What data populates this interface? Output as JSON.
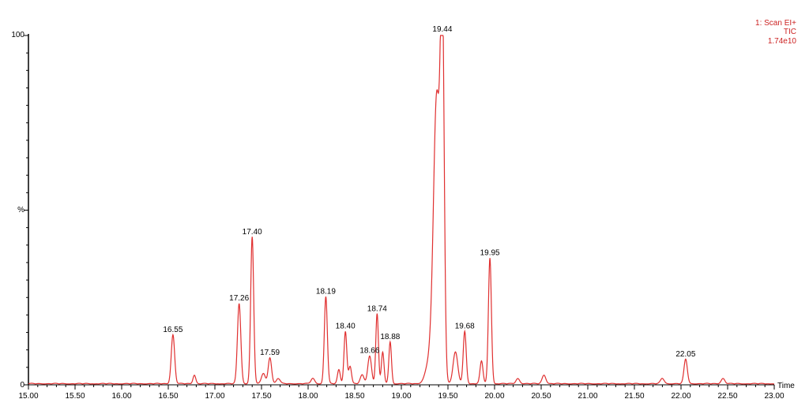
{
  "chart_data": {
    "type": "line",
    "colors": {
      "trace": "#e03030",
      "axis": "#000000",
      "legend": "#cc2222"
    },
    "legend": {
      "line1": "1: Scan EI+",
      "line2": "TIC",
      "line3": "1.74e10",
      "placement": "top-right"
    },
    "xlabel": "Time",
    "ylabel": "%",
    "xlim": [
      15.0,
      23.0
    ],
    "ylim": [
      0,
      100
    ],
    "grid": false,
    "x_tick_labels": [
      "15.00",
      "15.50",
      "16.00",
      "16.50",
      "17.00",
      "17.50",
      "18.00",
      "18.50",
      "19.00",
      "19.50",
      "20.00",
      "20.50",
      "21.00",
      "21.50",
      "22.00",
      "22.50",
      "23.00"
    ],
    "y_tick_labels": {
      "top": "100",
      "mid": "%",
      "bottom": "0"
    },
    "series": [
      {
        "peaks": [
          {
            "rt": 16.55,
            "height": 14,
            "width": 0.018,
            "label": "16.55"
          },
          {
            "rt": 16.78,
            "height": 2.5,
            "width": 0.015
          },
          {
            "rt": 17.26,
            "height": 23,
            "width": 0.018,
            "label": "17.26"
          },
          {
            "rt": 17.4,
            "height": 42,
            "width": 0.016,
            "label": "17.40"
          },
          {
            "rt": 17.52,
            "height": 3,
            "width": 0.02
          },
          {
            "rt": 17.59,
            "height": 7.5,
            "width": 0.018,
            "label": "17.59"
          },
          {
            "rt": 17.68,
            "height": 1.5,
            "width": 0.02
          },
          {
            "rt": 18.05,
            "height": 1.5,
            "width": 0.02
          },
          {
            "rt": 18.19,
            "height": 25,
            "width": 0.016,
            "label": "18.19"
          },
          {
            "rt": 18.33,
            "height": 4,
            "width": 0.015
          },
          {
            "rt": 18.4,
            "height": 15,
            "width": 0.015,
            "label": "18.40"
          },
          {
            "rt": 18.45,
            "height": 5,
            "width": 0.015
          },
          {
            "rt": 18.58,
            "height": 2.5,
            "width": 0.02
          },
          {
            "rt": 18.66,
            "height": 8,
            "width": 0.02,
            "label": "18.66"
          },
          {
            "rt": 18.74,
            "height": 20,
            "width": 0.014,
            "label": "18.74"
          },
          {
            "rt": 18.8,
            "height": 9,
            "width": 0.014
          },
          {
            "rt": 18.88,
            "height": 12,
            "width": 0.014,
            "label": "18.88"
          },
          {
            "rt": 19.3,
            "height": 6,
            "width": 0.04
          },
          {
            "rt": 19.38,
            "height": 82,
            "width": 0.035
          },
          {
            "rt": 19.44,
            "height": 100,
            "width": 0.02,
            "label": "19.44"
          },
          {
            "rt": 19.58,
            "height": 9,
            "width": 0.025
          },
          {
            "rt": 19.68,
            "height": 15,
            "width": 0.016,
            "label": "19.68"
          },
          {
            "rt": 19.86,
            "height": 6.5,
            "width": 0.016
          },
          {
            "rt": 19.95,
            "height": 36,
            "width": 0.016,
            "label": "19.95"
          },
          {
            "rt": 20.25,
            "height": 1.5,
            "width": 0.02
          },
          {
            "rt": 20.53,
            "height": 2.5,
            "width": 0.02
          },
          {
            "rt": 21.8,
            "height": 1.5,
            "width": 0.02
          },
          {
            "rt": 22.05,
            "height": 7,
            "width": 0.018,
            "label": "22.05"
          },
          {
            "rt": 22.45,
            "height": 1.5,
            "width": 0.02
          }
        ]
      }
    ]
  }
}
